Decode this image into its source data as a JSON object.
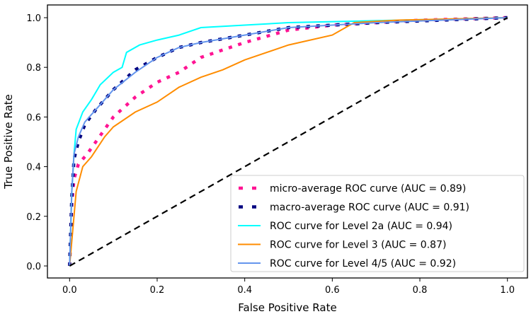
{
  "chart_data": {
    "type": "line",
    "title": "",
    "xlabel": "False Positive Rate",
    "ylabel": "True Positive Rate",
    "xlim": [
      -0.05,
      1.05
    ],
    "ylim": [
      -0.05,
      1.05
    ],
    "xticks": [
      "0.0",
      "0.2",
      "0.4",
      "0.6",
      "0.8",
      "1.0"
    ],
    "yticks": [
      "0.0",
      "0.2",
      "0.4",
      "0.6",
      "0.8",
      "1.0"
    ],
    "grid": false,
    "legend_position": "bottom-right",
    "series": [
      {
        "name": "micro-average ROC curve (AUC = 0.89)",
        "color": "#ff1493",
        "style": "dotted",
        "x": [
          0,
          0.005,
          0.01,
          0.02,
          0.04,
          0.06,
          0.1,
          0.15,
          0.2,
          0.25,
          0.3,
          0.35,
          0.4,
          0.5,
          0.6,
          0.8,
          1
        ],
        "y": [
          0,
          0.25,
          0.35,
          0.41,
          0.45,
          0.5,
          0.6,
          0.68,
          0.74,
          0.78,
          0.84,
          0.87,
          0.9,
          0.95,
          0.97,
          0.99,
          1
        ]
      },
      {
        "name": "macro-average ROC curve (AUC = 0.91)",
        "color": "#000080",
        "style": "dotted",
        "x": [
          0,
          0.005,
          0.01,
          0.02,
          0.035,
          0.06,
          0.1,
          0.15,
          0.2,
          0.25,
          0.3,
          0.4,
          0.5,
          0.6,
          0.7,
          1
        ],
        "y": [
          0,
          0.28,
          0.43,
          0.5,
          0.57,
          0.63,
          0.71,
          0.79,
          0.84,
          0.88,
          0.9,
          0.93,
          0.96,
          0.97,
          0.98,
          1
        ]
      },
      {
        "name": "ROC curve for Level 2a (AUC = 0.94)",
        "color": "#00ffff",
        "style": "solid",
        "x": [
          0,
          0.005,
          0.01,
          0.015,
          0.03,
          0.05,
          0.07,
          0.1,
          0.12,
          0.13,
          0.16,
          0.2,
          0.25,
          0.3,
          0.4,
          0.5,
          1
        ],
        "y": [
          0,
          0.3,
          0.45,
          0.55,
          0.62,
          0.67,
          0.73,
          0.78,
          0.8,
          0.86,
          0.89,
          0.91,
          0.93,
          0.96,
          0.97,
          0.98,
          1
        ]
      },
      {
        "name": "ROC curve for Level 3 (AUC = 0.87)",
        "color": "#ff8c00",
        "style": "solid",
        "x": [
          0,
          0.01,
          0.015,
          0.03,
          0.05,
          0.08,
          0.1,
          0.15,
          0.2,
          0.25,
          0.3,
          0.35,
          0.4,
          0.5,
          0.6,
          0.65,
          0.75,
          1
        ],
        "y": [
          0,
          0.2,
          0.3,
          0.4,
          0.44,
          0.52,
          0.56,
          0.62,
          0.66,
          0.72,
          0.76,
          0.79,
          0.83,
          0.89,
          0.93,
          0.98,
          0.99,
          1
        ]
      },
      {
        "name": "ROC curve for Level 4/5 (AUC = 0.92)",
        "color": "#6495ed",
        "style": "solid",
        "x": [
          0,
          0.005,
          0.01,
          0.02,
          0.035,
          0.06,
          0.1,
          0.15,
          0.2,
          0.25,
          0.3,
          0.4,
          0.5,
          0.6,
          0.7,
          1
        ],
        "y": [
          0,
          0.3,
          0.45,
          0.52,
          0.58,
          0.63,
          0.71,
          0.78,
          0.84,
          0.88,
          0.9,
          0.93,
          0.96,
          0.97,
          0.98,
          1
        ]
      },
      {
        "name": "",
        "color": "#000000",
        "style": "dashed",
        "x": [
          0,
          1
        ],
        "y": [
          0,
          1
        ]
      }
    ]
  }
}
